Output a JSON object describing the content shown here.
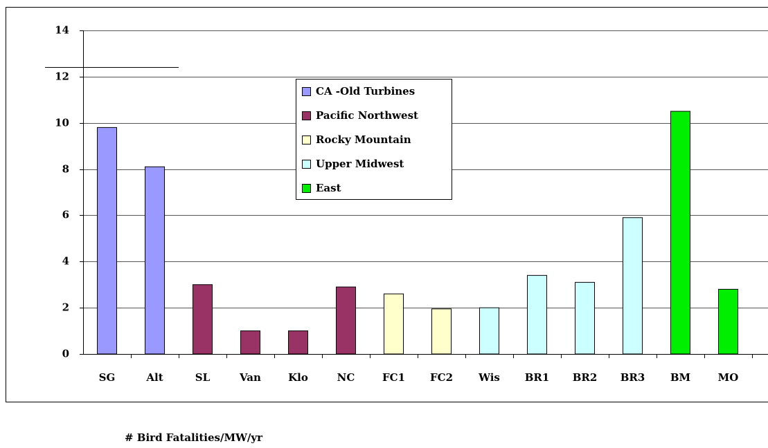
{
  "chart_data": {
    "type": "bar",
    "title": "# Bird Fatalities/MW/yr",
    "categories": [
      "SG",
      "Alt",
      "SL",
      "Van",
      "Klo",
      "NC",
      "FC1",
      "FC2",
      "Wis",
      "BR1",
      "BR2",
      "BR3",
      "BM",
      "MO"
    ],
    "series": [
      {
        "name": "CA -Old Turbines",
        "color": "#9999ff",
        "values": [
          9.8,
          8.1,
          null,
          null,
          null,
          null,
          null,
          null,
          null,
          null,
          null,
          null,
          null,
          null
        ]
      },
      {
        "name": "Pacific Northwest",
        "color": "#993366",
        "values": [
          null,
          null,
          3.0,
          1.0,
          1.0,
          2.9,
          null,
          null,
          null,
          null,
          null,
          null,
          null,
          null
        ]
      },
      {
        "name": "Rocky Mountain",
        "color": "#ffffcc",
        "values": [
          null,
          null,
          null,
          null,
          null,
          null,
          2.6,
          1.95,
          null,
          null,
          null,
          null,
          null,
          null
        ]
      },
      {
        "name": "Upper Midwest",
        "color": "#ccffff",
        "values": [
          null,
          null,
          null,
          null,
          null,
          null,
          null,
          null,
          2.0,
          3.4,
          3.1,
          5.9,
          null,
          null
        ]
      },
      {
        "name": "East",
        "color": "#00ee00",
        "values": [
          null,
          null,
          null,
          null,
          null,
          null,
          null,
          null,
          null,
          null,
          null,
          null,
          10.5,
          2.8
        ]
      }
    ],
    "ylim": [
      0,
      14
    ],
    "yticks": [
      0,
      2,
      4,
      6,
      8,
      10,
      12,
      14
    ],
    "grid": true
  }
}
